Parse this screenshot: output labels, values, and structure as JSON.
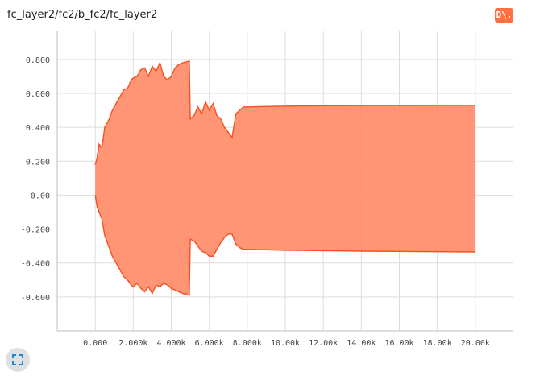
{
  "card": {
    "title": "fc_layer2/fc2/b_fc2/fc_layer2",
    "badge": "D\\."
  },
  "colors": {
    "accent": "#ff7043",
    "band_fill": "#ff8a65",
    "band_stroke": "#f4511e",
    "grid": "#dddddd"
  },
  "icons": {
    "expand": "fullscreen-icon"
  },
  "chart_data": {
    "type": "area",
    "grid": true,
    "xlim": [
      -2000,
      22000
    ],
    "ylim": [
      -0.8,
      0.97
    ],
    "x_ticks": [
      0,
      2000,
      4000,
      6000,
      8000,
      10000,
      12000,
      14000,
      16000,
      18000,
      20000
    ],
    "x_tick_labels": [
      "0.000",
      "2.000k",
      "4.000k",
      "6.000k",
      "8.000k",
      "10.00k",
      "12.00k",
      "14.00k",
      "16.00k",
      "18.00k",
      "20.00k"
    ],
    "y_ticks": [
      -0.6,
      -0.4,
      -0.2,
      0,
      0.2,
      0.4,
      0.6,
      0.8
    ],
    "y_tick_labels": [
      "-0.600",
      "-0.400",
      "-0.200",
      "0.00",
      "0.200",
      "0.400",
      "0.600",
      "0.800"
    ],
    "series": [
      {
        "upper": [
          [
            0,
            0.18
          ],
          [
            100,
            0.22
          ],
          [
            200,
            0.3
          ],
          [
            350,
            0.28
          ],
          [
            500,
            0.4
          ],
          [
            700,
            0.44
          ],
          [
            900,
            0.5
          ],
          [
            1100,
            0.54
          ],
          [
            1300,
            0.58
          ],
          [
            1500,
            0.62
          ],
          [
            1700,
            0.63
          ],
          [
            1900,
            0.68
          ],
          [
            2000,
            0.69
          ],
          [
            2200,
            0.7
          ],
          [
            2400,
            0.74
          ],
          [
            2600,
            0.75
          ],
          [
            2800,
            0.7
          ],
          [
            3000,
            0.76
          ],
          [
            3200,
            0.73
          ],
          [
            3400,
            0.78
          ],
          [
            3600,
            0.7
          ],
          [
            3800,
            0.68
          ],
          [
            4000,
            0.7
          ],
          [
            4200,
            0.75
          ],
          [
            4400,
            0.77
          ],
          [
            4600,
            0.78
          ],
          [
            4950,
            0.79
          ],
          [
            5000,
            0.45
          ],
          [
            5200,
            0.47
          ],
          [
            5400,
            0.52
          ],
          [
            5600,
            0.48
          ],
          [
            5800,
            0.55
          ],
          [
            6000,
            0.5
          ],
          [
            6200,
            0.54
          ],
          [
            6400,
            0.47
          ],
          [
            6600,
            0.45
          ],
          [
            6800,
            0.4
          ],
          [
            7000,
            0.37
          ],
          [
            7200,
            0.34
          ],
          [
            7400,
            0.48
          ],
          [
            7600,
            0.5
          ],
          [
            7800,
            0.52
          ],
          [
            8000,
            0.52
          ],
          [
            10000,
            0.525
          ],
          [
            14000,
            0.528
          ],
          [
            20000,
            0.53
          ]
        ],
        "lower": [
          [
            0,
            0.0
          ],
          [
            100,
            -0.07
          ],
          [
            200,
            -0.1
          ],
          [
            350,
            -0.14
          ],
          [
            500,
            -0.24
          ],
          [
            700,
            -0.3
          ],
          [
            900,
            -0.36
          ],
          [
            1100,
            -0.4
          ],
          [
            1300,
            -0.44
          ],
          [
            1500,
            -0.48
          ],
          [
            1700,
            -0.5
          ],
          [
            1900,
            -0.53
          ],
          [
            2000,
            -0.54
          ],
          [
            2200,
            -0.52
          ],
          [
            2400,
            -0.55
          ],
          [
            2600,
            -0.57
          ],
          [
            2800,
            -0.54
          ],
          [
            3000,
            -0.58
          ],
          [
            3200,
            -0.53
          ],
          [
            3400,
            -0.54
          ],
          [
            3600,
            -0.52
          ],
          [
            3800,
            -0.53
          ],
          [
            4000,
            -0.55
          ],
          [
            4200,
            -0.56
          ],
          [
            4400,
            -0.57
          ],
          [
            4600,
            -0.58
          ],
          [
            4950,
            -0.59
          ],
          [
            5000,
            -0.26
          ],
          [
            5200,
            -0.27
          ],
          [
            5400,
            -0.3
          ],
          [
            5600,
            -0.33
          ],
          [
            5800,
            -0.34
          ],
          [
            6000,
            -0.36
          ],
          [
            6200,
            -0.36
          ],
          [
            6400,
            -0.32
          ],
          [
            6600,
            -0.28
          ],
          [
            6800,
            -0.25
          ],
          [
            7000,
            -0.23
          ],
          [
            7200,
            -0.23
          ],
          [
            7400,
            -0.29
          ],
          [
            7600,
            -0.31
          ],
          [
            7800,
            -0.32
          ],
          [
            8000,
            -0.32
          ],
          [
            10000,
            -0.325
          ],
          [
            14000,
            -0.33
          ],
          [
            20000,
            -0.335
          ]
        ]
      }
    ]
  }
}
